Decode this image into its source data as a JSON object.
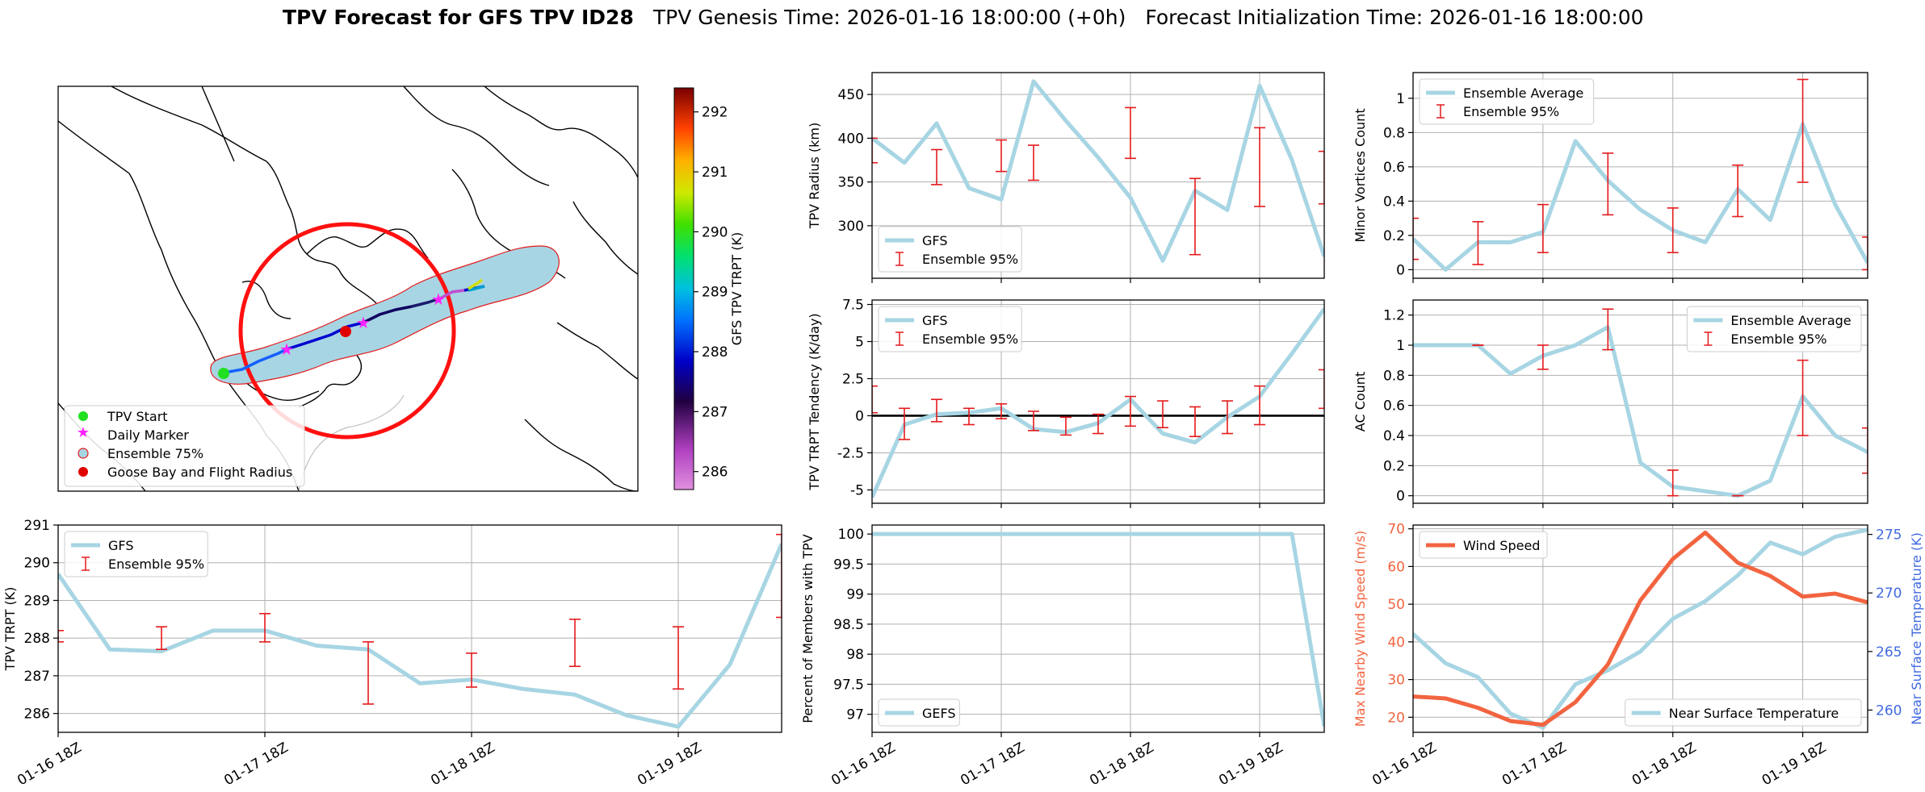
{
  "title": {
    "bold": "TPV Forecast for GFS TPV ID28",
    "genesis": "TPV Genesis Time: 2026-01-16 18:00:00 (+0h)",
    "init": "Forecast Initialization Time: 2026-01-16 18:00:00"
  },
  "colors": {
    "gfs": "#a7d5e3",
    "ensemble": "#e41a1c",
    "wind": "#f26440",
    "temp_axis": "#4169e1",
    "wind_axis": "#f26440"
  },
  "time_ticks": [
    "01-16 18Z",
    "01-17 18Z",
    "01-18 18Z",
    "01-19 18Z"
  ],
  "chart_data": [
    {
      "id": "map",
      "type": "map",
      "colorbar": {
        "label": "GFS TPV TRPT (K)",
        "ticks": [
          286,
          287,
          288,
          289,
          290,
          291,
          292
        ],
        "range": [
          285.7,
          292.4
        ]
      },
      "legend": [
        "TPV Start",
        "Daily Marker",
        "Ensemble 75%",
        "Goose Bay and Flight Radius"
      ]
    },
    {
      "id": "radius",
      "type": "line",
      "ylabel": "TPV Radius (km)",
      "ylim": [
        240,
        475
      ],
      "yticks": [
        300,
        350,
        400,
        450
      ],
      "legend_loc": "lower left",
      "series": [
        {
          "name": "GFS",
          "x": [
            0,
            0.25,
            0.5,
            0.75,
            1,
            1.25,
            1.5,
            1.75,
            2,
            2.25,
            2.5,
            2.75,
            3,
            3.25,
            3.5
          ],
          "values": [
            400,
            372,
            417,
            343,
            330,
            465,
            420,
            378,
            332,
            260,
            340,
            318,
            460,
            375,
            265
          ]
        }
      ],
      "ensemble": {
        "name": "Ensemble 95%",
        "x": [
          0,
          0.5,
          1,
          1.25,
          2,
          2.5,
          3,
          3.5
        ],
        "low": [
          372,
          347,
          362,
          352,
          377,
          267,
          322,
          325
        ],
        "high": [
          400,
          387,
          398,
          392,
          435,
          354,
          412,
          385
        ]
      }
    },
    {
      "id": "minor",
      "type": "line",
      "ylabel": "Minor Vortices Count",
      "ylim": [
        -0.05,
        1.15
      ],
      "yticks": [
        0.0,
        0.2,
        0.4,
        0.6,
        0.8,
        1.0
      ],
      "legend_loc": "upper left",
      "series": [
        {
          "name": "Ensemble Average",
          "x": [
            0,
            0.25,
            0.5,
            0.75,
            1,
            1.25,
            1.5,
            1.75,
            2,
            2.25,
            2.5,
            2.75,
            3,
            3.25,
            3.5
          ],
          "values": [
            0.18,
            0.0,
            0.16,
            0.16,
            0.22,
            0.75,
            0.52,
            0.35,
            0.23,
            0.16,
            0.47,
            0.29,
            0.85,
            0.38,
            0.04
          ]
        }
      ],
      "ensemble": {
        "name": "Ensemble 95%",
        "x": [
          0,
          0.5,
          1,
          1.5,
          2,
          2.5,
          3,
          3.5
        ],
        "low": [
          0.06,
          0.03,
          0.1,
          0.32,
          0.1,
          0.31,
          0.51,
          0.0
        ],
        "high": [
          0.3,
          0.28,
          0.38,
          0.68,
          0.36,
          0.61,
          1.11,
          0.19
        ]
      }
    },
    {
      "id": "tendency",
      "type": "line",
      "ylabel": "TPV TRPT Tendency (K/day)",
      "ylim": [
        -5.9,
        7.8
      ],
      "yticks": [
        -5.0,
        -2.5,
        0.0,
        2.5,
        5.0,
        7.5
      ],
      "legend_loc": "upper left",
      "series": [
        {
          "name": "GFS",
          "x": [
            0,
            0.25,
            0.5,
            0.75,
            1,
            1.25,
            1.5,
            1.75,
            2,
            2.25,
            2.5,
            2.75,
            3,
            3.25,
            3.5
          ],
          "values": [
            -5.5,
            -0.6,
            0.1,
            0.2,
            0.5,
            -0.9,
            -1.1,
            -0.5,
            1.1,
            -1.2,
            -1.8,
            -0.1,
            1.3,
            4.2,
            7.2
          ]
        }
      ],
      "ensemble": {
        "name": "Ensemble 95%",
        "x": [
          0,
          0.25,
          0.5,
          0.75,
          1,
          1.25,
          1.5,
          1.75,
          2,
          2.25,
          2.5,
          2.75,
          3,
          3.5
        ],
        "low": [
          0.2,
          -1.6,
          -0.4,
          -0.6,
          -0.2,
          -1.0,
          -1.3,
          -1.2,
          -0.7,
          -0.8,
          -1.4,
          -1.2,
          -0.6,
          0.5
        ],
        "high": [
          2.0,
          0.5,
          1.1,
          0.5,
          0.8,
          0.3,
          -0.1,
          0.1,
          1.3,
          1.0,
          0.6,
          1.0,
          2.0,
          3.1
        ]
      },
      "zero_line": 0
    },
    {
      "id": "ac",
      "type": "line",
      "ylabel": "AC Count",
      "ylim": [
        -0.05,
        1.3
      ],
      "yticks": [
        0.0,
        0.2,
        0.4,
        0.6,
        0.8,
        1.0,
        1.2
      ],
      "legend_loc": "upper right",
      "series": [
        {
          "name": "Ensemble Average",
          "x": [
            0,
            0.25,
            0.5,
            0.75,
            1,
            1.25,
            1.5,
            1.75,
            2,
            2.25,
            2.5,
            2.75,
            3,
            3.25,
            3.5
          ],
          "values": [
            1.0,
            1.0,
            1.0,
            0.81,
            0.93,
            1.0,
            1.12,
            0.22,
            0.06,
            0.03,
            0.0,
            0.1,
            0.66,
            0.4,
            0.29
          ]
        }
      ],
      "ensemble": {
        "name": "Ensemble 95%",
        "x": [
          0.5,
          1,
          1.5,
          2,
          2.5,
          3,
          3.5
        ],
        "low": [
          1.0,
          0.84,
          0.97,
          0.0,
          0.0,
          0.4,
          0.15
        ],
        "high": [
          1.0,
          1.0,
          1.24,
          0.17,
          0.0,
          0.9,
          0.45
        ]
      }
    },
    {
      "id": "trpt",
      "type": "line",
      "ylabel": "TPV TRPT (K)",
      "ylim": [
        285.5,
        291
      ],
      "yticks": [
        286,
        287,
        288,
        289,
        290,
        291
      ],
      "legend_loc": "upper left",
      "series": [
        {
          "name": "GFS",
          "x": [
            0,
            0.25,
            0.5,
            0.75,
            1,
            1.25,
            1.5,
            1.75,
            2,
            2.25,
            2.5,
            2.75,
            3,
            3.25,
            3.5
          ],
          "values": [
            289.7,
            287.7,
            287.65,
            288.2,
            288.2,
            287.8,
            287.7,
            286.8,
            286.9,
            286.65,
            286.5,
            285.95,
            285.65,
            287.3,
            290.5
          ]
        }
      ],
      "ensemble": {
        "name": "Ensemble 95%",
        "x": [
          0,
          0.5,
          1,
          1.5,
          2,
          2.5,
          3,
          3.5
        ],
        "low": [
          287.9,
          287.7,
          287.9,
          286.25,
          286.7,
          287.25,
          286.65,
          288.55
        ],
        "high": [
          288.2,
          288.3,
          288.65,
          287.9,
          287.6,
          288.5,
          288.3,
          290.75
        ]
      }
    },
    {
      "id": "percent",
      "type": "line",
      "ylabel": "Percent of Members with TPV",
      "ylim": [
        96.7,
        100.15
      ],
      "yticks": [
        97.0,
        97.5,
        98.0,
        98.5,
        99.0,
        99.5,
        100.0
      ],
      "legend_loc": "lower left",
      "series": [
        {
          "name": "GEFS",
          "x": [
            0,
            0.25,
            0.5,
            0.75,
            1,
            1.25,
            1.5,
            1.75,
            2,
            2.25,
            2.5,
            2.75,
            3,
            3.25,
            3.5
          ],
          "values": [
            100,
            100,
            100,
            100,
            100,
            100,
            100,
            100,
            100,
            100,
            100,
            100,
            100,
            100,
            96.8
          ]
        }
      ]
    },
    {
      "id": "wind_temp",
      "type": "line",
      "ylabel": "Max Nearby Wind Speed (m/s)",
      "ylabel2": "Near Surface Temperature (K)",
      "ylim": [
        16,
        71
      ],
      "ylim2": [
        258.1,
        275.8
      ],
      "yticks": [
        20,
        30,
        40,
        50,
        60,
        70
      ],
      "yticks2": [
        260,
        265,
        270,
        275
      ],
      "legend_loc": "upper left",
      "legend2_loc": "lower right",
      "series": [
        {
          "name": "Wind Speed",
          "x": [
            0,
            0.25,
            0.5,
            0.75,
            1,
            1.25,
            1.5,
            1.75,
            2,
            2.25,
            2.5,
            2.75,
            3,
            3.25,
            3.5
          ],
          "values": [
            25.5,
            25,
            22.5,
            19,
            18,
            24,
            34,
            51,
            62,
            69,
            61,
            57.5,
            52,
            52.8,
            50.5
          ]
        },
        {
          "name": "Near Surface Temperature",
          "x": [
            0,
            0.25,
            0.5,
            0.75,
            1,
            1.25,
            1.5,
            1.75,
            2,
            2.25,
            2.5,
            2.75,
            3,
            3.25,
            3.5
          ],
          "values": [
            266.5,
            264,
            262.8,
            259.7,
            258.5,
            262.2,
            263.4,
            265,
            267.8,
            269.3,
            271.5,
            274.3,
            273.3,
            274.8,
            275.4
          ]
        }
      ]
    }
  ]
}
